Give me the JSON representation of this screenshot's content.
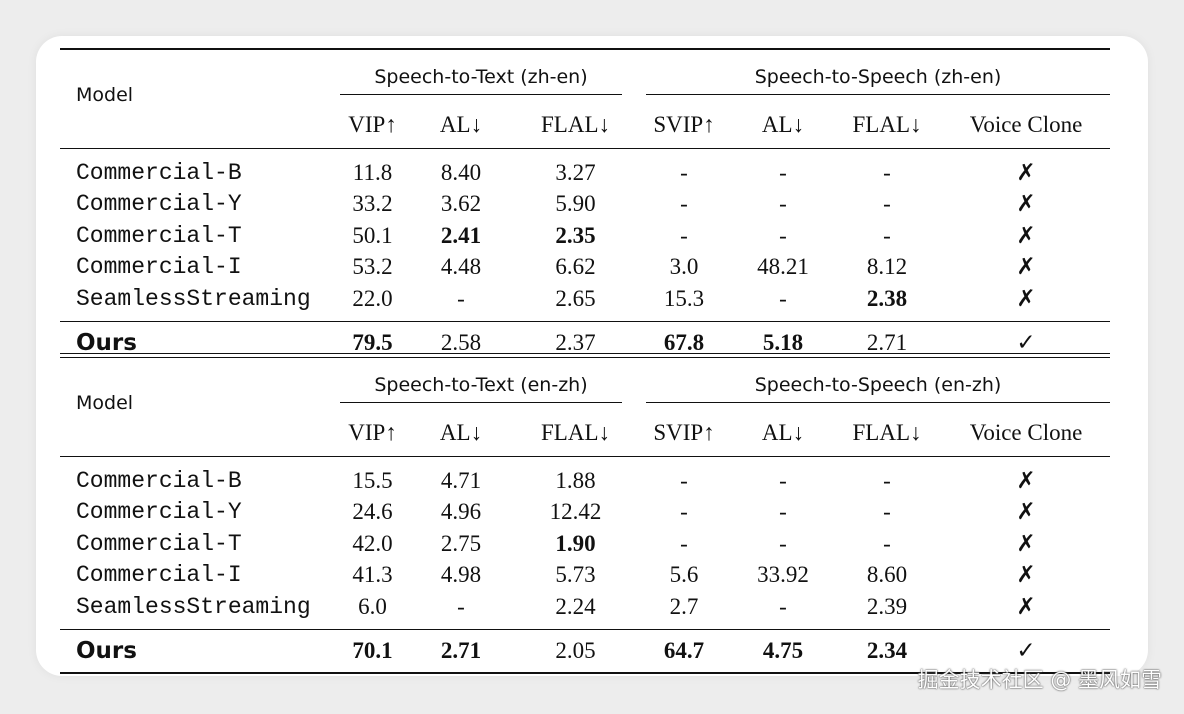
{
  "model_header": "Model",
  "tables": [
    {
      "group_left": "Speech-to-Text (zh-en)",
      "group_right": "Speech-to-Speech (zh-en)",
      "columns": [
        "VIP↑",
        "AL↓",
        "FLAL↓",
        "SVIP↑",
        "AL↓",
        "FLAL↓",
        "Voice Clone"
      ],
      "rows": [
        [
          "Commercial-B",
          "11.8",
          "8.40",
          "3.27",
          "-",
          "-",
          "-",
          "✗"
        ],
        [
          "Commercial-Y",
          "33.2",
          "3.62",
          "5.90",
          "-",
          "-",
          "-",
          "✗"
        ],
        [
          "Commercial-T",
          "50.1",
          "2.41",
          "2.35",
          "-",
          "-",
          "-",
          "✗"
        ],
        [
          "Commercial-I",
          "53.2",
          "4.48",
          "6.62",
          "3.0",
          "48.21",
          "8.12",
          "✗"
        ],
        [
          "SeamlessStreaming",
          "22.0",
          "-",
          "2.65",
          "15.3",
          "-",
          "2.38",
          "✗"
        ]
      ],
      "ours": [
        "Ours",
        "79.5",
        "2.58",
        "2.37",
        "67.8",
        "5.18",
        "2.71",
        "✓"
      ]
    },
    {
      "group_left": "Speech-to-Text (en-zh)",
      "group_right": "Speech-to-Speech (en-zh)",
      "columns": [
        "VIP↑",
        "AL↓",
        "FLAL↓",
        "SVIP↑",
        "AL↓",
        "FLAL↓",
        "Voice Clone"
      ],
      "rows": [
        [
          "Commercial-B",
          "15.5",
          "4.71",
          "1.88",
          "-",
          "-",
          "-",
          "✗"
        ],
        [
          "Commercial-Y",
          "24.6",
          "4.96",
          "12.42",
          "-",
          "-",
          "-",
          "✗"
        ],
        [
          "Commercial-T",
          "42.0",
          "2.75",
          "1.90",
          "-",
          "-",
          "-",
          "✗"
        ],
        [
          "Commercial-I",
          "41.3",
          "4.98",
          "5.73",
          "5.6",
          "33.92",
          "8.60",
          "✗"
        ],
        [
          "SeamlessStreaming",
          "6.0",
          "-",
          "2.24",
          "2.7",
          "-",
          "2.39",
          "✗"
        ]
      ],
      "ours": [
        "Ours",
        "70.1",
        "2.71",
        "2.05",
        "64.7",
        "4.75",
        "2.34",
        "✓"
      ]
    }
  ],
  "watermark": "掘金技术社区 @ 墨风如雪"
}
